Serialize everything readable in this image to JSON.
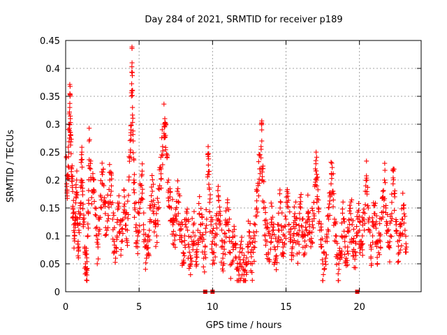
{
  "chart_data": {
    "type": "scatter",
    "title": "Day 284 of 2021, SRMTID for receiver p189",
    "xlabel": "GPS time / hours",
    "ylabel": "SRMTID / TECUs",
    "xlim": [
      0,
      24.2
    ],
    "ylim": [
      0,
      0.45
    ],
    "xticks": [
      0,
      5,
      10,
      15,
      20
    ],
    "yticks": [
      0,
      0.05,
      0.1,
      0.15,
      0.2,
      0.25,
      0.3,
      0.35,
      0.4,
      0.45
    ],
    "xtick_labels": [
      "0",
      "5",
      "10",
      "15",
      "20"
    ],
    "ytick_labels": [
      "0",
      "0.05",
      "0.1",
      "0.15",
      "0.2",
      "0.25",
      "0.3",
      "0.35",
      "0.4",
      "0.45"
    ],
    "grid": true,
    "marker": "plus",
    "color": "#ff0000",
    "series_count_note": "dense scatter, approximately 1500 points",
    "points": [
      [
        0.05,
        0.24
      ],
      [
        0.1,
        0.18
      ],
      [
        0.15,
        0.21
      ],
      [
        0.2,
        0.25
      ],
      [
        0.25,
        0.3
      ],
      [
        0.28,
        0.33
      ],
      [
        0.3,
        0.35
      ],
      [
        0.32,
        0.31
      ],
      [
        0.35,
        0.28
      ],
      [
        0.4,
        0.22
      ],
      [
        0.45,
        0.19
      ],
      [
        0.5,
        0.15
      ],
      [
        0.55,
        0.12
      ],
      [
        0.6,
        0.1
      ],
      [
        0.65,
        0.14
      ],
      [
        0.7,
        0.17
      ],
      [
        0.75,
        0.2
      ],
      [
        0.8,
        0.13
      ],
      [
        0.85,
        0.09
      ],
      [
        0.9,
        0.11
      ],
      [
        1.0,
        0.15
      ],
      [
        1.05,
        0.2
      ],
      [
        1.1,
        0.25
      ],
      [
        1.15,
        0.18
      ],
      [
        1.2,
        0.12
      ],
      [
        1.3,
        0.08
      ],
      [
        1.35,
        0.05
      ],
      [
        1.4,
        0.04
      ],
      [
        1.45,
        0.03
      ],
      [
        1.5,
        0.1
      ],
      [
        1.55,
        0.14
      ],
      [
        1.6,
        0.27
      ],
      [
        1.7,
        0.22
      ],
      [
        1.8,
        0.18
      ],
      [
        1.9,
        0.2
      ],
      [
        2.0,
        0.15
      ],
      [
        2.1,
        0.1
      ],
      [
        2.2,
        0.08
      ],
      [
        2.3,
        0.13
      ],
      [
        2.4,
        0.17
      ],
      [
        2.5,
        0.21
      ],
      [
        2.6,
        0.19
      ],
      [
        2.7,
        0.14
      ],
      [
        2.8,
        0.11
      ],
      [
        2.9,
        0.16
      ],
      [
        3.0,
        0.2
      ],
      [
        3.1,
        0.18
      ],
      [
        3.2,
        0.13
      ],
      [
        3.3,
        0.09
      ],
      [
        3.4,
        0.06
      ],
      [
        3.5,
        0.1
      ],
      [
        3.6,
        0.15
      ],
      [
        3.7,
        0.12
      ],
      [
        3.8,
        0.09
      ],
      [
        3.9,
        0.13
      ],
      [
        4.0,
        0.17
      ],
      [
        4.1,
        0.14
      ],
      [
        4.2,
        0.11
      ],
      [
        4.3,
        0.2
      ],
      [
        4.4,
        0.25
      ],
      [
        4.45,
        0.29
      ],
      [
        4.5,
        0.36
      ],
      [
        4.52,
        0.41
      ],
      [
        4.55,
        0.33
      ],
      [
        4.6,
        0.27
      ],
      [
        4.65,
        0.2
      ],
      [
        4.7,
        0.15
      ],
      [
        4.8,
        0.12
      ],
      [
        4.9,
        0.1
      ],
      [
        5.0,
        0.14
      ],
      [
        5.1,
        0.19
      ],
      [
        5.2,
        0.21
      ],
      [
        5.3,
        0.12
      ],
      [
        5.4,
        0.08
      ],
      [
        5.5,
        0.06
      ],
      [
        5.6,
        0.09
      ],
      [
        5.7,
        0.11
      ],
      [
        5.8,
        0.15
      ],
      [
        5.9,
        0.18
      ],
      [
        6.0,
        0.14
      ],
      [
        6.1,
        0.12
      ],
      [
        6.2,
        0.1
      ],
      [
        6.3,
        0.16
      ],
      [
        6.4,
        0.19
      ],
      [
        6.5,
        0.22
      ],
      [
        6.6,
        0.26
      ],
      [
        6.7,
        0.3
      ],
      [
        6.75,
        0.31
      ],
      [
        6.8,
        0.28
      ],
      [
        6.9,
        0.24
      ],
      [
        7.0,
        0.2
      ],
      [
        7.1,
        0.17
      ],
      [
        7.2,
        0.15
      ],
      [
        7.3,
        0.12
      ],
      [
        7.4,
        0.1
      ],
      [
        7.5,
        0.13
      ],
      [
        7.6,
        0.18
      ],
      [
        7.7,
        0.16
      ],
      [
        7.8,
        0.12
      ],
      [
        7.9,
        0.09
      ],
      [
        8.0,
        0.07
      ],
      [
        8.1,
        0.1
      ],
      [
        8.2,
        0.13
      ],
      [
        8.3,
        0.11
      ],
      [
        8.4,
        0.08
      ],
      [
        8.5,
        0.06
      ],
      [
        8.6,
        0.09
      ],
      [
        8.7,
        0.12
      ],
      [
        8.8,
        0.1
      ],
      [
        8.9,
        0.07
      ],
      [
        9.0,
        0.11
      ],
      [
        9.1,
        0.14
      ],
      [
        9.2,
        0.12
      ],
      [
        9.3,
        0.09
      ],
      [
        9.4,
        0.06
      ],
      [
        9.5,
        0.08
      ],
      [
        9.6,
        0.13
      ],
      [
        9.7,
        0.26
      ],
      [
        9.75,
        0.21
      ],
      [
        9.8,
        0.16
      ],
      [
        9.9,
        0.12
      ],
      [
        10.0,
        0.09
      ],
      [
        10.1,
        0.07
      ],
      [
        10.2,
        0.1
      ],
      [
        10.3,
        0.14
      ],
      [
        10.4,
        0.17
      ],
      [
        10.5,
        0.12
      ],
      [
        10.6,
        0.08
      ],
      [
        10.7,
        0.06
      ],
      [
        10.8,
        0.09
      ],
      [
        10.9,
        0.12
      ],
      [
        11.0,
        0.15
      ],
      [
        11.1,
        0.11
      ],
      [
        11.2,
        0.07
      ],
      [
        11.3,
        0.05
      ],
      [
        11.4,
        0.08
      ],
      [
        11.5,
        0.1
      ],
      [
        11.6,
        0.06
      ],
      [
        11.7,
        0.04
      ],
      [
        11.8,
        0.03
      ],
      [
        11.9,
        0.05
      ],
      [
        12.0,
        0.07
      ],
      [
        12.1,
        0.04
      ],
      [
        12.2,
        0.02
      ],
      [
        12.3,
        0.05
      ],
      [
        12.4,
        0.08
      ],
      [
        12.5,
        0.1
      ],
      [
        12.6,
        0.07
      ],
      [
        12.7,
        0.05
      ],
      [
        12.8,
        0.08
      ],
      [
        12.9,
        0.12
      ],
      [
        13.0,
        0.15
      ],
      [
        13.1,
        0.19
      ],
      [
        13.2,
        0.22
      ],
      [
        13.3,
        0.26
      ],
      [
        13.35,
        0.27
      ],
      [
        13.4,
        0.2
      ],
      [
        13.5,
        0.16
      ],
      [
        13.6,
        0.12
      ],
      [
        13.7,
        0.09
      ],
      [
        13.8,
        0.07
      ],
      [
        13.9,
        0.1
      ],
      [
        14.0,
        0.13
      ],
      [
        14.1,
        0.11
      ],
      [
        14.2,
        0.08
      ],
      [
        14.3,
        0.06
      ],
      [
        14.4,
        0.09
      ],
      [
        14.5,
        0.12
      ],
      [
        14.6,
        0.15
      ],
      [
        14.7,
        0.11
      ],
      [
        14.8,
        0.08
      ],
      [
        14.9,
        0.1
      ],
      [
        15.0,
        0.13
      ],
      [
        15.1,
        0.16
      ],
      [
        15.2,
        0.12
      ],
      [
        15.3,
        0.09
      ],
      [
        15.4,
        0.07
      ],
      [
        15.5,
        0.1
      ],
      [
        15.6,
        0.14
      ],
      [
        15.7,
        0.12
      ],
      [
        15.8,
        0.09
      ],
      [
        15.9,
        0.11
      ],
      [
        16.0,
        0.15
      ],
      [
        16.1,
        0.13
      ],
      [
        16.2,
        0.1
      ],
      [
        16.3,
        0.08
      ],
      [
        16.4,
        0.11
      ],
      [
        16.5,
        0.14
      ],
      [
        16.6,
        0.12
      ],
      [
        16.7,
        0.09
      ],
      [
        16.8,
        0.12
      ],
      [
        16.9,
        0.16
      ],
      [
        17.0,
        0.22
      ],
      [
        17.05,
        0.25
      ],
      [
        17.1,
        0.2
      ],
      [
        17.2,
        0.15
      ],
      [
        17.3,
        0.11
      ],
      [
        17.4,
        0.08
      ],
      [
        17.5,
        0.05
      ],
      [
        17.6,
        0.04
      ],
      [
        17.7,
        0.06
      ],
      [
        17.8,
        0.09
      ],
      [
        17.9,
        0.13
      ],
      [
        18.0,
        0.17
      ],
      [
        18.1,
        0.21
      ],
      [
        18.2,
        0.18
      ],
      [
        18.3,
        0.13
      ],
      [
        18.4,
        0.09
      ],
      [
        18.5,
        0.06
      ],
      [
        18.6,
        0.04
      ],
      [
        18.7,
        0.07
      ],
      [
        18.8,
        0.1
      ],
      [
        18.9,
        0.13
      ],
      [
        19.0,
        0.09
      ],
      [
        19.1,
        0.06
      ],
      [
        19.2,
        0.08
      ],
      [
        19.3,
        0.11
      ],
      [
        19.4,
        0.14
      ],
      [
        19.5,
        0.12
      ],
      [
        19.6,
        0.09
      ],
      [
        19.7,
        0.07
      ],
      [
        19.8,
        0.1
      ],
      [
        19.9,
        0.13
      ],
      [
        20.0,
        0.11
      ],
      [
        20.1,
        0.08
      ],
      [
        20.2,
        0.1
      ],
      [
        20.3,
        0.13
      ],
      [
        20.4,
        0.18
      ],
      [
        20.5,
        0.2
      ],
      [
        20.6,
        0.15
      ],
      [
        20.7,
        0.11
      ],
      [
        20.8,
        0.08
      ],
      [
        20.9,
        0.1
      ],
      [
        21.0,
        0.14
      ],
      [
        21.1,
        0.12
      ],
      [
        21.2,
        0.09
      ],
      [
        21.3,
        0.07
      ],
      [
        21.4,
        0.1
      ],
      [
        21.5,
        0.13
      ],
      [
        21.6,
        0.17
      ],
      [
        21.7,
        0.2
      ],
      [
        21.8,
        0.15
      ],
      [
        21.9,
        0.11
      ],
      [
        22.0,
        0.08
      ],
      [
        22.1,
        0.1
      ],
      [
        22.2,
        0.14
      ],
      [
        22.3,
        0.22
      ],
      [
        22.4,
        0.17
      ],
      [
        22.5,
        0.12
      ],
      [
        22.6,
        0.09
      ],
      [
        22.7,
        0.07
      ],
      [
        22.8,
        0.1
      ],
      [
        22.9,
        0.13
      ],
      [
        23.0,
        0.15
      ],
      [
        23.1,
        0.11
      ],
      [
        23.2,
        0.08
      ]
    ],
    "bottom_markers_x": [
      9.5,
      10.0,
      19.85
    ]
  }
}
